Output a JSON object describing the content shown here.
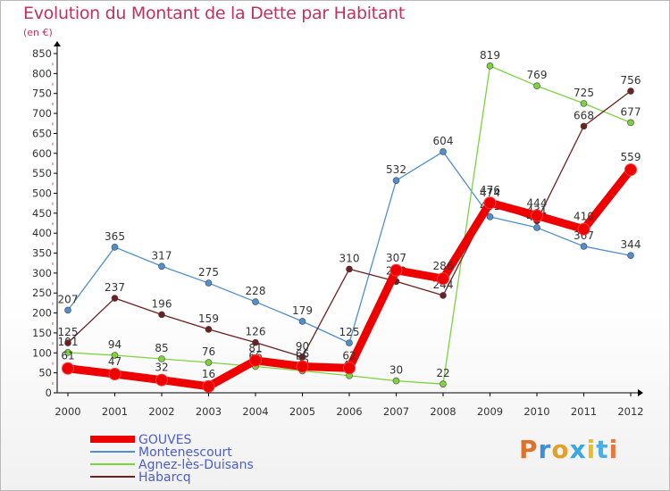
{
  "chart_data": {
    "type": "line",
    "title": "Evolution du Montant de la Dette par Habitant",
    "unit": "(en €)",
    "x": [
      2000,
      2001,
      2002,
      2003,
      2004,
      2005,
      2006,
      2007,
      2008,
      2009,
      2010,
      2011,
      2012
    ],
    "ylim": [
      0,
      850
    ],
    "yticks": [
      0,
      50,
      100,
      150,
      200,
      250,
      300,
      350,
      400,
      450,
      500,
      550,
      600,
      650,
      700,
      750,
      800,
      850
    ],
    "grid": false,
    "legend_position": "bottom-left",
    "series": [
      {
        "name": "Montenescourt",
        "color": "#4f8fcf",
        "values": [
          207,
          365,
          317,
          275,
          228,
          179,
          125,
          532,
          604,
          441,
          414,
          367,
          344
        ]
      },
      {
        "name": "Agnez-lès-Duisans",
        "color": "#7cd43c",
        "values": [
          101,
          94,
          85,
          76,
          66,
          55,
          43,
          30,
          22,
          819,
          769,
          725,
          677
        ]
      },
      {
        "name": "Habarcq",
        "color": "#6e1f1f",
        "values": [
          125,
          237,
          196,
          159,
          126,
          90,
          310,
          279,
          244,
          474,
          431,
          668,
          756
        ]
      },
      {
        "name": "GOUVES",
        "color": "#ee0000",
        "values": [
          61,
          47,
          32,
          16,
          81,
          66,
          62,
          307,
          286,
          476,
          444,
          410,
          559
        ]
      }
    ],
    "legend": [
      "GOUVES",
      "Montenescourt",
      "Agnez-lès-Duisans",
      "Habarcq"
    ]
  },
  "brand": [
    "P",
    "r",
    "o",
    "x",
    "i",
    "t",
    "i"
  ]
}
